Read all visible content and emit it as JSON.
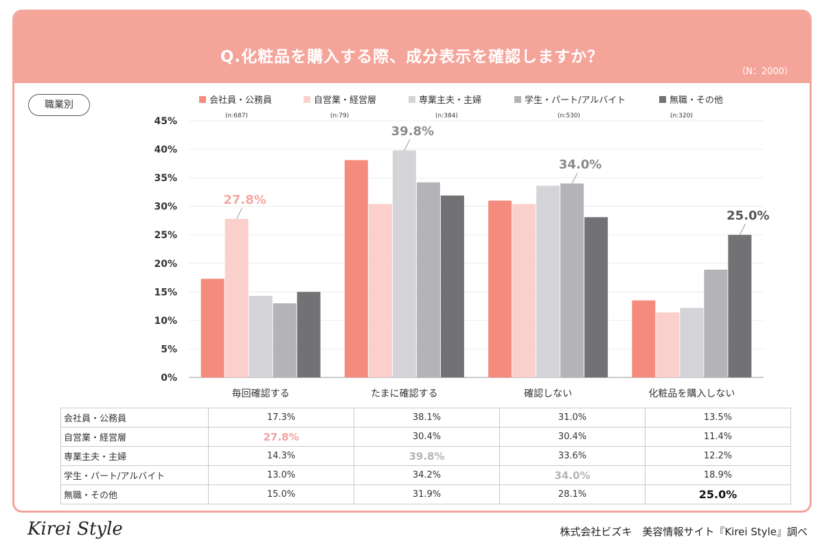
{
  "title": "Q.化粧品を購入する際、成分表示を確認しますか？",
  "n_note": "（N：2000）",
  "badge": "職業別",
  "logo_text": "Kirei Style",
  "credit": "株式会社ビズキ　美容情報サイト『Kirei Style』調べ",
  "legend": [
    {
      "label": "会社員・公務員",
      "n": "(n:687)"
    },
    {
      "label": "自営業・経営層",
      "n": "(n:79)"
    },
    {
      "label": "専業主夫・主婦",
      "n": "(n:384)"
    },
    {
      "label": "学生・パート/アルバイト",
      "n": "(n:530)"
    },
    {
      "label": "無職・その他",
      "n": "(n:320)"
    }
  ],
  "colors": [
    "#f48b7c",
    "#fbcfcb",
    "#d4d4d8",
    "#b3b3b8",
    "#727274"
  ],
  "chart_data": {
    "type": "bar",
    "categories": [
      "毎回確認する",
      "たまに確認する",
      "確認しない",
      "化粧品を購入しない"
    ],
    "series": [
      {
        "name": "会社員・公務員",
        "values": [
          17.3,
          38.1,
          31.0,
          13.5
        ]
      },
      {
        "name": "自営業・経営層",
        "values": [
          27.8,
          30.4,
          30.4,
          11.4
        ]
      },
      {
        "name": "専業主夫・主婦",
        "values": [
          14.3,
          39.8,
          33.6,
          12.2
        ]
      },
      {
        "name": "学生・パート/アルバイト",
        "values": [
          13.0,
          34.2,
          34.0,
          18.9
        ]
      },
      {
        "name": "無職・その他",
        "values": [
          15.0,
          31.9,
          28.1,
          25.0
        ]
      }
    ],
    "y_ticks": [
      "0%",
      "5%",
      "10%",
      "15%",
      "20%",
      "25%",
      "30%",
      "35%",
      "40%",
      "45%"
    ],
    "ylim": [
      0,
      45
    ],
    "callouts": [
      {
        "category": 0,
        "series": 1,
        "label": "27.8%",
        "color": "#f4a7a1"
      },
      {
        "category": 1,
        "series": 2,
        "label": "39.8%",
        "color": "#8a8a8e"
      },
      {
        "category": 2,
        "series": 3,
        "label": "34.0%",
        "color": "#8a8a8e"
      },
      {
        "category": 3,
        "series": 4,
        "label": "25.0%",
        "color": "#555555"
      }
    ]
  },
  "table": {
    "rows": [
      {
        "label": "会社員・公務員",
        "values": [
          "17.3%",
          "38.1%",
          "31.0%",
          "13.5%"
        ]
      },
      {
        "label": "自営業・経営層",
        "values": [
          "27.8%",
          "30.4%",
          "30.4%",
          "11.4%"
        ]
      },
      {
        "label": "専業主夫・主婦",
        "values": [
          "14.3%",
          "39.8%",
          "33.6%",
          "12.2%"
        ]
      },
      {
        "label": "学生・パート/アルバイト",
        "values": [
          "13.0%",
          "34.2%",
          "34.0%",
          "18.9%"
        ]
      },
      {
        "label": "無職・その他",
        "values": [
          "15.0%",
          "31.9%",
          "28.1%",
          "25.0%"
        ]
      }
    ]
  }
}
